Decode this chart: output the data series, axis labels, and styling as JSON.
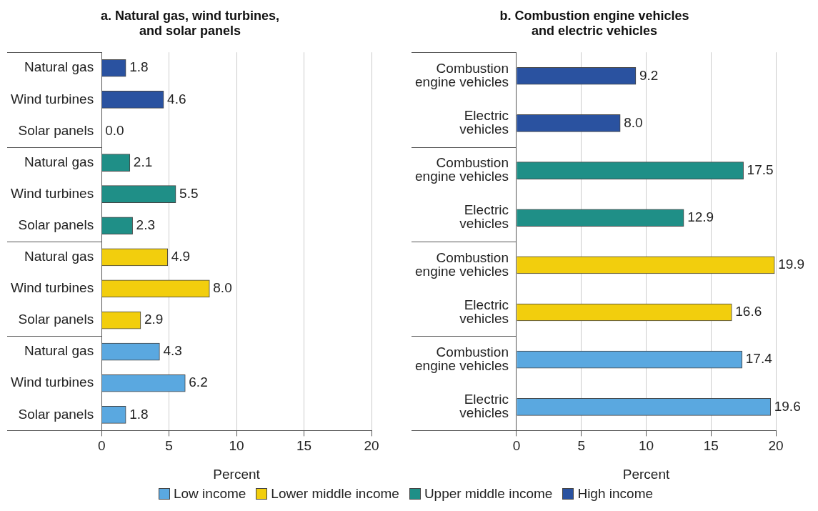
{
  "chart_data": [
    {
      "type": "bar",
      "orientation": "horizontal",
      "title": "a. Natural gas, wind turbines, and solar panels",
      "xlabel": "Percent",
      "categories": [
        "Natural gas",
        "Wind turbines",
        "Solar panels",
        "Natural gas",
        "Wind turbines",
        "Solar panels",
        "Natural gas",
        "Wind turbines",
        "Solar panels",
        "Natural gas",
        "Wind turbines",
        "Solar panels"
      ],
      "series": [
        {
          "name": "Low income",
          "color": "#5aa8e0",
          "values": [
            null,
            null,
            null,
            null,
            null,
            null,
            null,
            null,
            null,
            4.3,
            6.2,
            1.8
          ],
          "value_labels": [
            null,
            null,
            null,
            null,
            null,
            null,
            null,
            null,
            null,
            "4.3",
            "6.2",
            "1.8"
          ]
        },
        {
          "name": "Lower middle income",
          "color": "#f2ce0d",
          "values": [
            null,
            null,
            null,
            null,
            null,
            null,
            4.9,
            8.0,
            2.9,
            null,
            null,
            null
          ],
          "value_labels": [
            null,
            null,
            null,
            null,
            null,
            null,
            "4.9",
            "8.0",
            "2.9",
            null,
            null,
            null
          ]
        },
        {
          "name": "Upper middle income",
          "color": "#1f8f87",
          "values": [
            null,
            null,
            null,
            2.1,
            5.5,
            2.3,
            null,
            null,
            null,
            null,
            null,
            null
          ],
          "value_labels": [
            null,
            null,
            null,
            "2.1",
            "5.5",
            "2.3",
            null,
            null,
            null,
            null,
            null,
            null
          ]
        },
        {
          "name": "High income",
          "color": "#2a52a0",
          "values": [
            1.8,
            4.6,
            0.0,
            null,
            null,
            null,
            null,
            null,
            null,
            null,
            null,
            null
          ],
          "value_labels": [
            "1.8",
            "4.6",
            "0.0",
            null,
            null,
            null,
            null,
            null,
            null,
            null,
            null,
            null
          ]
        }
      ],
      "xlim": [
        0,
        20
      ],
      "xticks": [
        0,
        5,
        10,
        15,
        20
      ],
      "grid": "x",
      "legend": "bottom"
    },
    {
      "type": "bar",
      "orientation": "horizontal",
      "title": "b. Combustion engine vehicles and electric vehicles",
      "xlabel": "Percent",
      "categories": [
        "Combustion engine vehicles",
        "Electric vehicles",
        "Combustion engine vehicles",
        "Electric vehicles",
        "Combustion engine vehicles",
        "Electric vehicles",
        "Combustion engine vehicles",
        "Electric vehicles"
      ],
      "series": [
        {
          "color": "#5aa8e0",
          "values": [
            null,
            null,
            null,
            null,
            null,
            null,
            17.4,
            19.6
          ],
          "value_labels": [
            null,
            null,
            null,
            null,
            null,
            null,
            "17.4",
            "19.6"
          ]
        },
        {
          "color": "#f2ce0d",
          "values": [
            null,
            null,
            null,
            null,
            19.9,
            16.6,
            null,
            null
          ],
          "value_labels": [
            null,
            null,
            null,
            null,
            "19.9",
            "16.6",
            null,
            null
          ]
        },
        {
          "color": "#1f8f87",
          "values": [
            null,
            null,
            17.5,
            12.9,
            null,
            null,
            null,
            null
          ],
          "value_labels": [
            null,
            null,
            "17.5",
            "12.9",
            null,
            null,
            null,
            null
          ]
        },
        {
          "color": "#2a52a0",
          "values": [
            9.2,
            8.0,
            null,
            null,
            null,
            null,
            null,
            null
          ],
          "value_labels": [
            "9.2",
            "8.0",
            null,
            null,
            null,
            null,
            null,
            null
          ]
        }
      ],
      "xlim": [
        0,
        20
      ],
      "xticks": [
        0,
        5,
        10,
        15,
        20
      ],
      "grid": "x"
    }
  ]
}
